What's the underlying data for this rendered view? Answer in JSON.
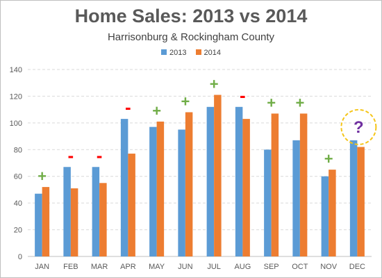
{
  "chart_data": {
    "type": "bar",
    "title": "Home Sales: 2013 vs 2014",
    "subtitle": "Harrisonburg & Rockingham County",
    "categories": [
      "JAN",
      "FEB",
      "MAR",
      "APR",
      "MAY",
      "JUN",
      "JUL",
      "AUG",
      "SEP",
      "OCT",
      "NOV",
      "DEC"
    ],
    "series": [
      {
        "name": "2013",
        "color": "#5b9bd5",
        "values": [
          47,
          67,
          67,
          103,
          97,
          95,
          112,
          112,
          80,
          87,
          60,
          87
        ]
      },
      {
        "name": "2014",
        "color": "#ed7d31",
        "values": [
          52,
          51,
          55,
          77,
          101,
          108,
          121,
          103,
          107,
          107,
          65,
          82
        ]
      }
    ],
    "ylim": [
      0,
      140
    ],
    "yticks": [
      0,
      20,
      40,
      60,
      80,
      100,
      120,
      140
    ],
    "grid": true,
    "legend_position": "top",
    "annotations": {
      "change_markers": [
        "+",
        "-",
        "-",
        "-",
        "+",
        "+",
        "+",
        "-",
        "+",
        "+",
        "+",
        "?"
      ],
      "plus_color": "#70ad47",
      "minus_color": "#ff0000",
      "question_color": "#7030a0",
      "highlight_circle_color": "#f5c518"
    }
  }
}
